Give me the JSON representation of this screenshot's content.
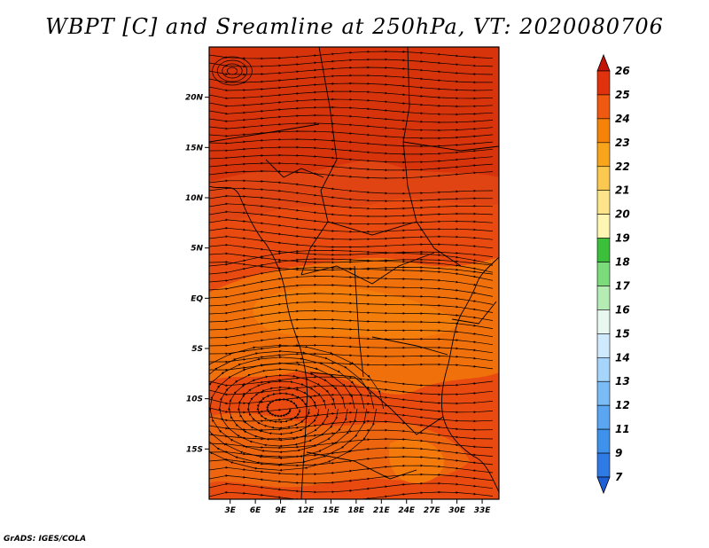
{
  "title": "WBPT [C] and Sreamline at 250hPa, VT: 2020080706",
  "credit": "GrADS: IGES/COLA",
  "map": {
    "lat_labels": [
      {
        "text": "20N",
        "lat": 20
      },
      {
        "text": "15N",
        "lat": 15
      },
      {
        "text": "10N",
        "lat": 10
      },
      {
        "text": "5N",
        "lat": 5
      },
      {
        "text": "EQ",
        "lat": 0
      },
      {
        "text": "5S",
        "lat": -5
      },
      {
        "text": "10S",
        "lat": -10
      },
      {
        "text": "15S",
        "lat": -15
      }
    ],
    "lon_labels": [
      {
        "text": "3E",
        "lon": 3
      },
      {
        "text": "6E",
        "lon": 6
      },
      {
        "text": "9E",
        "lon": 9
      },
      {
        "text": "12E",
        "lon": 12
      },
      {
        "text": "15E",
        "lon": 15
      },
      {
        "text": "18E",
        "lon": 18
      },
      {
        "text": "21E",
        "lon": 21
      },
      {
        "text": "24E",
        "lon": 24
      },
      {
        "text": "27E",
        "lon": 27
      },
      {
        "text": "30E",
        "lon": 30
      },
      {
        "text": "33E",
        "lon": 33
      }
    ],
    "lon_range": [
      0.5,
      35
    ],
    "lat_range": [
      -20,
      25
    ],
    "vortex": {
      "lon": 9,
      "lat": -11
    }
  },
  "colorbar": {
    "labels": [
      "7",
      "9",
      "11",
      "12",
      "13",
      "14",
      "15",
      "16",
      "17",
      "18",
      "19",
      "20",
      "21",
      "22",
      "23",
      "24",
      "25",
      "26"
    ],
    "colors": [
      "#1f5fd6",
      "#2f7be6",
      "#3f92ec",
      "#5aa6f2",
      "#7cbcf6",
      "#a6d4fa",
      "#cfeafc",
      "#e8f8f0",
      "#b4ecb4",
      "#7cdc7c",
      "#3cc03c",
      "#fff6b4",
      "#fde38a",
      "#fbc950",
      "#f9a51c",
      "#f68208",
      "#ef5a10",
      "#e0320c",
      "#c41408"
    ]
  }
}
